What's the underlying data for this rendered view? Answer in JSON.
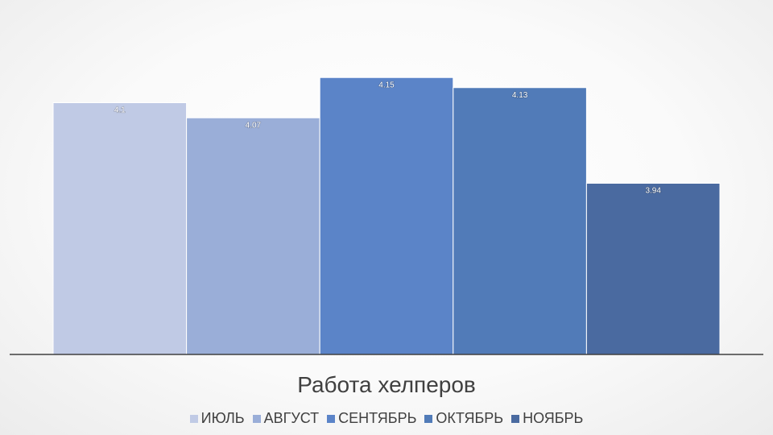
{
  "chart_data": {
    "type": "bar",
    "title": "Работа хелперов",
    "xlabel": "",
    "ylabel": "",
    "ylim": [
      3.6,
      4.2
    ],
    "grid": false,
    "legend_position": "bottom",
    "categories": [
      "ИЮЛЬ",
      "АВГУСТ",
      "СЕНТЯБРЬ",
      "ОКТЯБРЬ",
      "НОЯБРЬ"
    ],
    "values": [
      4.1,
      4.07,
      4.15,
      4.13,
      3.94
    ],
    "data_labels": [
      "4.1",
      "4.07",
      "4.15",
      "4.13",
      "3.94"
    ],
    "colors": [
      "#c0cae5",
      "#9aaed8",
      "#5b84c8",
      "#517bb8",
      "#4a6aa0"
    ]
  }
}
